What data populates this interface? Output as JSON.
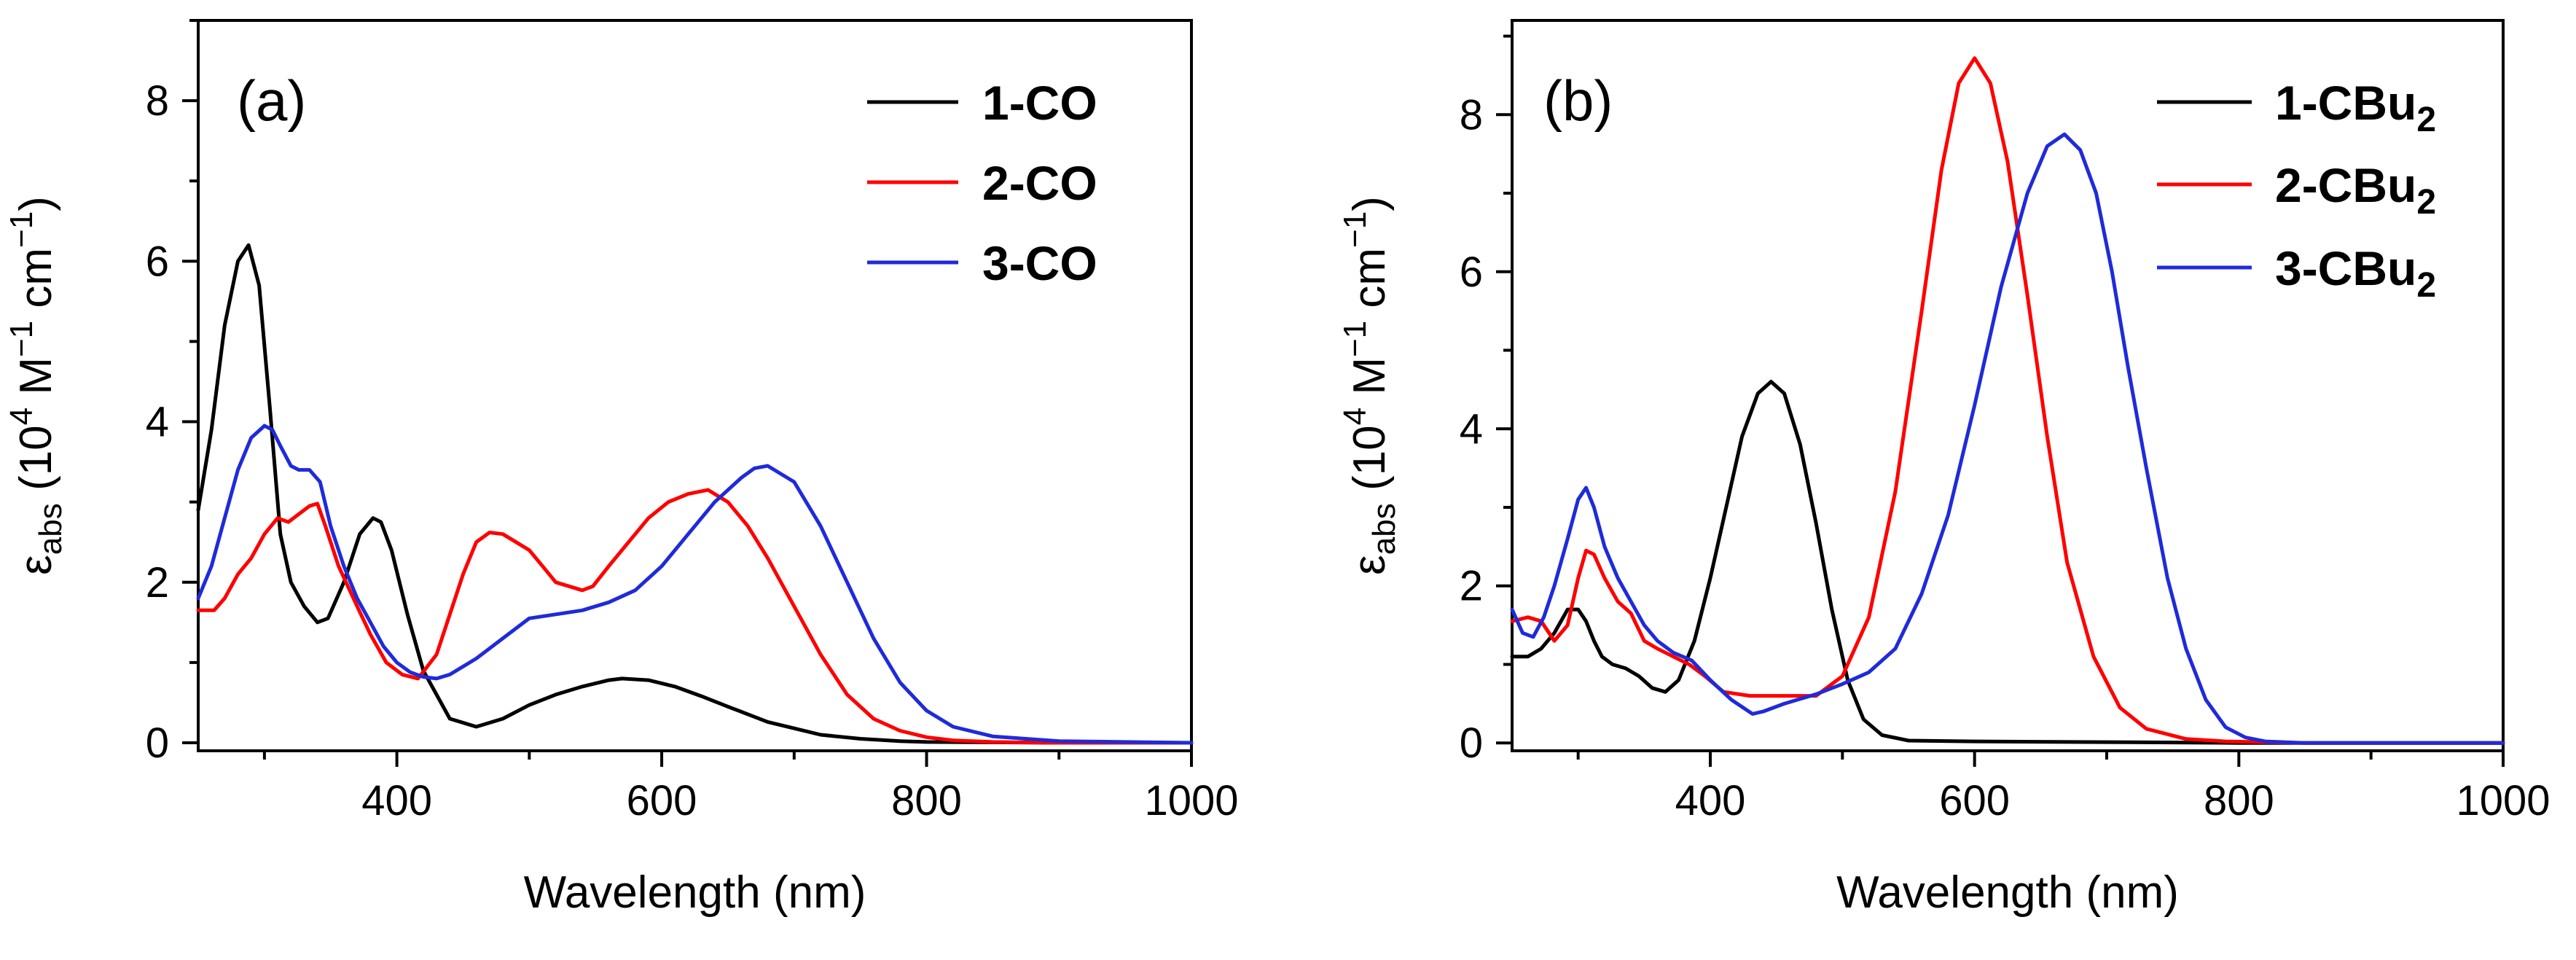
{
  "colors": {
    "black": "#000000",
    "red": "#ff0000",
    "blue": "#1f2bd9"
  },
  "chart_data": [
    {
      "type": "line",
      "panel_label": "(a)",
      "xlabel": "Wavelength (nm)",
      "ylabel": {
        "eps": "ε",
        "sub": "abs",
        "open": " (10",
        "exp4": "4",
        "M": " M",
        "exp1": "−1",
        "cm": " cm",
        "close": ")"
      },
      "xlim": [
        250,
        1000
      ],
      "ylim": [
        -0.1,
        9.0
      ],
      "x_ticks": [
        400,
        600,
        800,
        1000
      ],
      "x_tick_labels": [
        "400",
        "600",
        "800",
        "1000"
      ],
      "y_ticks": [
        0,
        2,
        4,
        6,
        8
      ],
      "y_tick_labels": [
        "0",
        "2",
        "4",
        "6",
        "8"
      ],
      "legend_position": "top-right",
      "series": [
        {
          "name": "1-CO",
          "color": "#000000",
          "x": [
            250,
            260,
            270,
            280,
            288,
            296,
            304,
            312,
            320,
            330,
            340,
            348,
            360,
            372,
            382,
            388,
            396,
            408,
            420,
            440,
            460,
            480,
            500,
            520,
            540,
            560,
            570,
            590,
            610,
            630,
            650,
            680,
            700,
            720,
            750,
            780,
            800,
            850,
            900,
            1000
          ],
          "y": [
            2.9,
            3.9,
            5.2,
            6.0,
            6.2,
            5.7,
            4.2,
            2.6,
            2.0,
            1.7,
            1.5,
            1.55,
            2.0,
            2.6,
            2.8,
            2.75,
            2.4,
            1.6,
            0.9,
            0.3,
            0.2,
            0.3,
            0.47,
            0.6,
            0.7,
            0.78,
            0.8,
            0.78,
            0.7,
            0.58,
            0.45,
            0.26,
            0.18,
            0.1,
            0.05,
            0.02,
            0.01,
            0.005,
            0.0,
            0.0
          ]
        },
        {
          "name": "2-CO",
          "color": "#ff0000",
          "x": [
            250,
            262,
            270,
            280,
            290,
            300,
            310,
            318,
            326,
            334,
            340,
            346,
            356,
            370,
            380,
            392,
            404,
            416,
            430,
            440,
            450,
            460,
            470,
            480,
            490,
            500,
            510,
            520,
            530,
            540,
            548,
            560,
            575,
            590,
            605,
            620,
            635,
            650,
            665,
            680,
            700,
            720,
            740,
            760,
            780,
            800,
            820,
            850,
            900,
            1000
          ],
          "y": [
            1.65,
            1.65,
            1.8,
            2.1,
            2.3,
            2.6,
            2.8,
            2.75,
            2.85,
            2.95,
            2.98,
            2.7,
            2.2,
            1.7,
            1.35,
            1.0,
            0.85,
            0.8,
            1.1,
            1.6,
            2.1,
            2.5,
            2.62,
            2.6,
            2.5,
            2.4,
            2.2,
            2.0,
            1.95,
            1.9,
            1.95,
            2.2,
            2.5,
            2.8,
            3.0,
            3.1,
            3.15,
            3.0,
            2.7,
            2.3,
            1.7,
            1.1,
            0.6,
            0.3,
            0.15,
            0.07,
            0.03,
            0.01,
            0.0,
            0.0
          ]
        },
        {
          "name": "3-CO",
          "color": "#1f2bd9",
          "x": [
            250,
            260,
            270,
            280,
            290,
            300,
            306,
            312,
            320,
            326,
            334,
            342,
            350,
            360,
            370,
            380,
            390,
            400,
            410,
            420,
            430,
            440,
            460,
            480,
            500,
            520,
            540,
            560,
            580,
            600,
            620,
            640,
            660,
            670,
            680,
            700,
            720,
            740,
            760,
            780,
            800,
            820,
            850,
            900,
            1000
          ],
          "y": [
            1.8,
            2.2,
            2.8,
            3.4,
            3.8,
            3.95,
            3.9,
            3.7,
            3.45,
            3.4,
            3.4,
            3.25,
            2.7,
            2.2,
            1.8,
            1.5,
            1.2,
            1.0,
            0.88,
            0.82,
            0.8,
            0.85,
            1.05,
            1.3,
            1.55,
            1.6,
            1.65,
            1.75,
            1.9,
            2.2,
            2.6,
            3.0,
            3.3,
            3.42,
            3.45,
            3.25,
            2.7,
            2.0,
            1.3,
            0.75,
            0.4,
            0.2,
            0.08,
            0.02,
            0.0
          ]
        }
      ]
    },
    {
      "type": "line",
      "panel_label": "(b)",
      "xlabel": "Wavelength (nm)",
      "ylabel": {
        "eps": "ε",
        "sub": "abs",
        "open": " (10",
        "exp4": "4",
        "M": " M",
        "exp1": "−1",
        "cm": " cm",
        "close": ")"
      },
      "xlim": [
        250,
        1000
      ],
      "ylim": [
        -0.1,
        9.2
      ],
      "x_ticks": [
        400,
        600,
        800,
        1000
      ],
      "x_tick_labels": [
        "400",
        "600",
        "800",
        "1000"
      ],
      "y_ticks": [
        0,
        2,
        4,
        6,
        8
      ],
      "y_tick_labels": [
        "0",
        "2",
        "4",
        "6",
        "8"
      ],
      "legend_position": "top-right",
      "legend_labels": [
        {
          "base": "1-CBu",
          "sub": "2"
        },
        {
          "base": "2-CBu",
          "sub": "2"
        },
        {
          "base": "3-CBu",
          "sub": "2"
        }
      ],
      "series": [
        {
          "name": "1-CBu2",
          "color": "#000000",
          "x": [
            250,
            262,
            272,
            282,
            292,
            300,
            306,
            312,
            318,
            326,
            336,
            346,
            356,
            366,
            376,
            388,
            400,
            412,
            424,
            436,
            446,
            456,
            468,
            480,
            492,
            504,
            516,
            530,
            550,
            600,
            700,
            800,
            900,
            1000
          ],
          "y": [
            1.1,
            1.1,
            1.2,
            1.4,
            1.7,
            1.7,
            1.55,
            1.3,
            1.1,
            1.0,
            0.95,
            0.85,
            0.7,
            0.65,
            0.8,
            1.3,
            2.1,
            3.0,
            3.9,
            4.45,
            4.6,
            4.45,
            3.8,
            2.8,
            1.7,
            0.8,
            0.3,
            0.1,
            0.03,
            0.02,
            0.01,
            0.0,
            0.0,
            0.0
          ]
        },
        {
          "name": "2-CBu2",
          "color": "#ff0000",
          "x": [
            250,
            262,
            272,
            282,
            292,
            300,
            306,
            312,
            320,
            330,
            340,
            350,
            360,
            372,
            384,
            396,
            410,
            430,
            450,
            480,
            500,
            520,
            540,
            560,
            575,
            588,
            600,
            612,
            625,
            640,
            655,
            670,
            690,
            710,
            730,
            760,
            790,
            820,
            850,
            900,
            1000
          ],
          "y": [
            1.55,
            1.6,
            1.55,
            1.3,
            1.5,
            2.1,
            2.45,
            2.4,
            2.1,
            1.8,
            1.65,
            1.3,
            1.2,
            1.1,
            1.0,
            0.85,
            0.65,
            0.6,
            0.6,
            0.6,
            0.85,
            1.6,
            3.2,
            5.5,
            7.3,
            8.4,
            8.72,
            8.4,
            7.4,
            5.7,
            3.9,
            2.3,
            1.1,
            0.45,
            0.18,
            0.05,
            0.02,
            0.01,
            0.0,
            0.0,
            0.0
          ]
        },
        {
          "name": "3-CBu2",
          "color": "#1f2bd9",
          "x": [
            250,
            258,
            266,
            274,
            282,
            292,
            300,
            306,
            312,
            320,
            330,
            340,
            350,
            360,
            372,
            386,
            400,
            416,
            432,
            440,
            456,
            480,
            500,
            520,
            540,
            560,
            580,
            600,
            620,
            640,
            655,
            668,
            680,
            692,
            704,
            716,
            730,
            746,
            760,
            775,
            790,
            805,
            820,
            850,
            900,
            1000
          ],
          "y": [
            1.7,
            1.4,
            1.35,
            1.6,
            2.0,
            2.6,
            3.1,
            3.25,
            3.0,
            2.5,
            2.1,
            1.8,
            1.5,
            1.3,
            1.15,
            1.05,
            0.8,
            0.55,
            0.37,
            0.4,
            0.5,
            0.62,
            0.75,
            0.9,
            1.2,
            1.9,
            2.9,
            4.3,
            5.8,
            7.0,
            7.6,
            7.75,
            7.55,
            7.0,
            6.0,
            4.8,
            3.5,
            2.1,
            1.2,
            0.55,
            0.2,
            0.07,
            0.02,
            0.0,
            0.0,
            0.0
          ]
        }
      ]
    }
  ]
}
